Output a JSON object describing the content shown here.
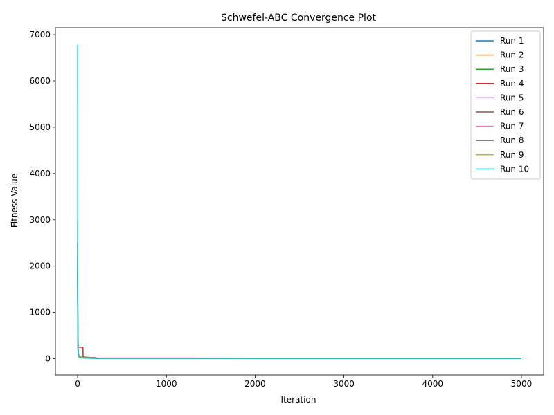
{
  "chart_data": {
    "type": "line",
    "title": "Schwefel-ABC Convergence Plot",
    "xlabel": "Iteration",
    "ylabel": "Fitness Value",
    "xlim": [
      -250,
      5250
    ],
    "ylim": [
      -350,
      7150
    ],
    "xticks": [
      0,
      1000,
      2000,
      3000,
      4000,
      5000
    ],
    "xtick_labels": [
      "0",
      "1000",
      "2000",
      "3000",
      "4000",
      "5000"
    ],
    "yticks": [
      0,
      1000,
      2000,
      3000,
      4000,
      5000,
      6000,
      7000
    ],
    "ytick_labels": [
      "0",
      "1000",
      "2000",
      "3000",
      "4000",
      "5000",
      "6000",
      "7000"
    ],
    "grid": false,
    "legend_position": "top-right",
    "series": [
      {
        "name": "Run 1",
        "color": "#1f77b4",
        "x": [
          0,
          3,
          8,
          20,
          60,
          200,
          5000
        ],
        "y": [
          2200,
          500,
          120,
          50,
          30,
          10,
          8
        ]
      },
      {
        "name": "Run 2",
        "color": "#ff7f0e",
        "x": [
          0,
          3,
          8,
          25,
          80,
          250,
          5000
        ],
        "y": [
          3000,
          400,
          100,
          40,
          20,
          10,
          8
        ]
      },
      {
        "name": "Run 3",
        "color": "#2ca02c",
        "x": [
          0,
          3,
          8,
          20,
          70,
          220,
          5000
        ],
        "y": [
          1800,
          300,
          90,
          35,
          18,
          9,
          8
        ]
      },
      {
        "name": "Run 4",
        "color": "#d62728",
        "x": [
          0,
          3,
          8,
          10,
          60,
          62,
          200,
          5000
        ],
        "y": [
          2500,
          600,
          250,
          250,
          250,
          40,
          15,
          8
        ]
      },
      {
        "name": "Run 5",
        "color": "#9467bd",
        "x": [
          0,
          3,
          8,
          20,
          70,
          220,
          5000
        ],
        "y": [
          1500,
          250,
          80,
          30,
          15,
          8,
          8
        ]
      },
      {
        "name": "Run 6",
        "color": "#8c564b",
        "x": [
          0,
          3,
          8,
          20,
          60,
          200,
          5000
        ],
        "y": [
          2000,
          350,
          100,
          40,
          25,
          10,
          8
        ]
      },
      {
        "name": "Run 7",
        "color": "#e377c2",
        "x": [
          0,
          3,
          8,
          20,
          80,
          250,
          5000
        ],
        "y": [
          1700,
          280,
          70,
          30,
          15,
          8,
          8
        ]
      },
      {
        "name": "Run 8",
        "color": "#7f7f7f",
        "x": [
          0,
          3,
          8,
          20,
          90,
          200,
          210,
          5000
        ],
        "y": [
          1900,
          320,
          90,
          35,
          30,
          25,
          10,
          8
        ]
      },
      {
        "name": "Run 9",
        "color": "#bcbd22",
        "x": [
          0,
          3,
          8,
          20,
          70,
          220,
          5000
        ],
        "y": [
          2100,
          400,
          110,
          40,
          20,
          9,
          8
        ]
      },
      {
        "name": "Run 10",
        "color": "#17becf",
        "x": [
          0,
          1,
          2,
          4,
          8,
          20,
          60,
          200,
          5000
        ],
        "y": [
          6780,
          6780,
          1000,
          300,
          80,
          30,
          15,
          8,
          8
        ]
      }
    ]
  }
}
